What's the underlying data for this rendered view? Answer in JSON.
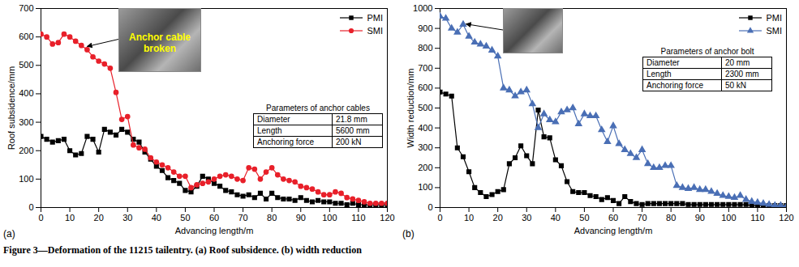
{
  "chart_data": [
    {
      "type": "line",
      "panel_label": "(a)",
      "x_label": "Advancing length/m",
      "y_label": "Roof subsidence/mm",
      "xlim": [
        0,
        120
      ],
      "xticks": [
        0,
        10,
        20,
        30,
        40,
        50,
        60,
        70,
        80,
        90,
        100,
        110,
        120
      ],
      "ylim": [
        0,
        700
      ],
      "yticks": [
        0,
        100,
        200,
        300,
        400,
        500,
        600,
        700
      ],
      "grid": false,
      "legend": "upper right",
      "x": [
        0,
        2,
        4,
        6,
        8,
        10,
        12,
        14,
        16,
        18,
        20,
        22,
        24,
        26,
        28,
        30,
        32,
        34,
        36,
        38,
        40,
        42,
        44,
        46,
        48,
        50,
        52,
        54,
        56,
        58,
        60,
        62,
        64,
        66,
        68,
        70,
        72,
        74,
        76,
        78,
        80,
        82,
        84,
        86,
        88,
        90,
        92,
        94,
        96,
        98,
        100,
        102,
        104,
        106,
        108,
        110,
        112,
        114,
        116,
        118,
        120
      ],
      "series": [
        {
          "name": "PMI",
          "color": "#000000",
          "marker": "square",
          "line_style": "solid",
          "values": [
            250,
            240,
            230,
            235,
            240,
            200,
            185,
            190,
            250,
            240,
            195,
            275,
            265,
            255,
            275,
            265,
            240,
            230,
            195,
            170,
            145,
            130,
            105,
            95,
            85,
            60,
            55,
            75,
            110,
            100,
            85,
            75,
            60,
            55,
            45,
            40,
            45,
            35,
            50,
            30,
            50,
            35,
            30,
            30,
            25,
            35,
            25,
            20,
            25,
            20,
            20,
            15,
            15,
            10,
            15,
            10,
            10,
            10,
            10,
            10,
            10
          ]
        },
        {
          "name": "SMI",
          "color": "#e8202a",
          "marker": "circle",
          "line_style": "solid",
          "values": [
            610,
            600,
            575,
            580,
            610,
            600,
            585,
            570,
            555,
            530,
            515,
            505,
            490,
            405,
            310,
            320,
            220,
            210,
            205,
            175,
            160,
            150,
            140,
            125,
            110,
            110,
            70,
            80,
            85,
            90,
            100,
            110,
            115,
            110,
            100,
            95,
            140,
            135,
            100,
            125,
            140,
            115,
            100,
            95,
            90,
            75,
            70,
            65,
            55,
            45,
            45,
            55,
            50,
            35,
            30,
            25,
            20,
            15,
            15,
            15,
            15
          ]
        }
      ],
      "annotation": {
        "text": "Anchor cable broken",
        "x": 15,
        "y": 565
      },
      "table": {
        "title": "Parameters of anchor cables",
        "rows": [
          [
            "Diameter",
            "21.8  mm"
          ],
          [
            "Length",
            "5600 mm"
          ],
          [
            "Anchoring force",
            "200 kN"
          ]
        ]
      }
    },
    {
      "type": "line",
      "panel_label": "(b)",
      "x_label": "Advancing length/m",
      "y_label": "Width reduction/mm",
      "xlim": [
        0,
        120
      ],
      "xticks": [
        0,
        10,
        20,
        30,
        40,
        50,
        60,
        70,
        80,
        90,
        100,
        110,
        120
      ],
      "ylim": [
        0,
        1000
      ],
      "yticks": [
        0,
        100,
        200,
        300,
        400,
        500,
        600,
        700,
        800,
        900,
        1000
      ],
      "grid": false,
      "legend": "upper right",
      "x": [
        0,
        2,
        4,
        6,
        8,
        10,
        12,
        14,
        16,
        18,
        20,
        22,
        24,
        26,
        28,
        30,
        32,
        34,
        36,
        38,
        40,
        42,
        44,
        46,
        48,
        50,
        52,
        54,
        56,
        58,
        60,
        62,
        64,
        66,
        68,
        70,
        72,
        74,
        76,
        78,
        80,
        82,
        84,
        86,
        88,
        90,
        92,
        94,
        96,
        98,
        100,
        102,
        104,
        106,
        108,
        110,
        112,
        114,
        116,
        118,
        120
      ],
      "series": [
        {
          "name": "PMI",
          "color": "#000000",
          "marker": "square",
          "line_style": "solid",
          "values": [
            580,
            570,
            560,
            300,
            255,
            180,
            100,
            75,
            55,
            65,
            80,
            90,
            220,
            250,
            310,
            260,
            220,
            490,
            355,
            350,
            240,
            210,
            130,
            80,
            75,
            75,
            60,
            55,
            40,
            50,
            35,
            20,
            55,
            30,
            20,
            15,
            20,
            20,
            20,
            20,
            20,
            20,
            20,
            15,
            15,
            15,
            15,
            15,
            15,
            15,
            15,
            15,
            15,
            15,
            10,
            10,
            10,
            10,
            10,
            10,
            10
          ]
        },
        {
          "name": "SMI",
          "color": "#4a6fb5",
          "marker": "triangle",
          "line_style": "solid",
          "values": [
            960,
            950,
            900,
            880,
            920,
            860,
            830,
            820,
            810,
            790,
            760,
            600,
            590,
            560,
            580,
            590,
            520,
            400,
            470,
            440,
            430,
            480,
            490,
            500,
            420,
            470,
            460,
            460,
            390,
            330,
            410,
            320,
            290,
            270,
            250,
            290,
            220,
            200,
            200,
            210,
            210,
            110,
            100,
            95,
            100,
            90,
            90,
            80,
            70,
            60,
            55,
            50,
            60,
            40,
            30,
            25,
            20,
            15,
            10,
            10,
            5
          ]
        }
      ],
      "annotation": {
        "x": 8,
        "y": 920
      },
      "table": {
        "title": "Parameters of anchor bolt",
        "rows": [
          [
            "Diameter",
            "20 mm"
          ],
          [
            "Length",
            "2300 mm"
          ],
          [
            "Anchoring force",
            "50 kN"
          ]
        ]
      }
    }
  ],
  "caption": "Figure 3—Deformation of the 11215 tailentry. (a) Roof subsidence. (b) width reduction"
}
